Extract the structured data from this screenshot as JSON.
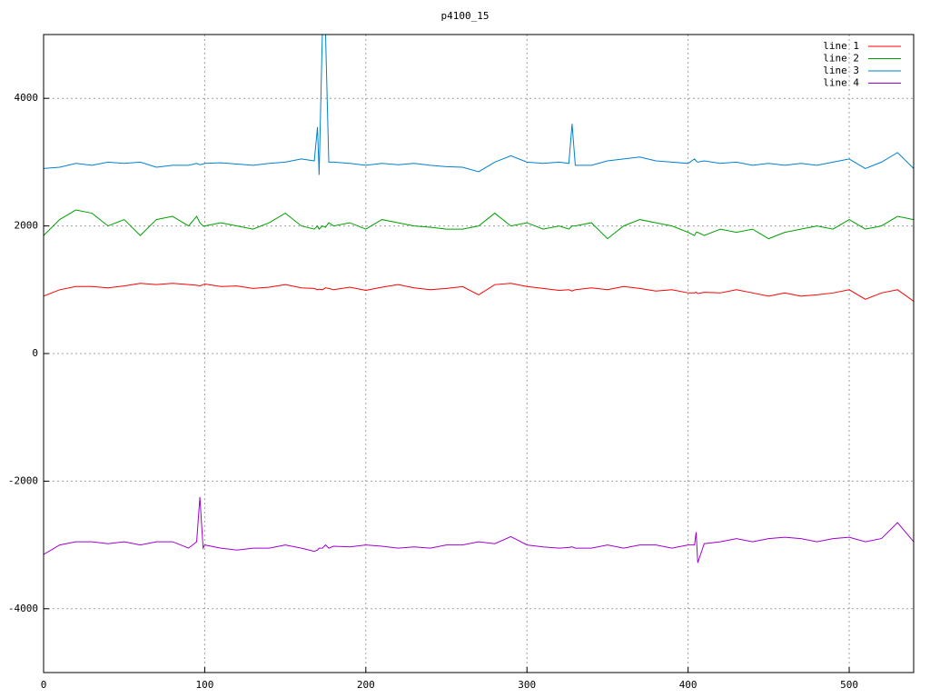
{
  "chart_data": {
    "type": "line",
    "title": "p4100_15",
    "x": [
      0,
      10,
      20,
      30,
      40,
      50,
      60,
      70,
      80,
      90,
      95,
      97,
      99,
      100,
      110,
      120,
      130,
      140,
      150,
      160,
      168,
      170,
      171,
      173,
      175,
      177,
      180,
      190,
      200,
      210,
      220,
      230,
      240,
      250,
      260,
      270,
      280,
      290,
      300,
      310,
      320,
      326,
      328,
      330,
      340,
      350,
      360,
      370,
      380,
      390,
      400,
      404,
      405,
      406,
      410,
      420,
      430,
      440,
      450,
      460,
      470,
      480,
      490,
      500,
      510,
      520,
      530,
      540
    ],
    "series": [
      {
        "name": "line 1",
        "color": "#ff0000",
        "values": [
          900,
          1000,
          1050,
          1050,
          1030,
          1060,
          1100,
          1080,
          1100,
          1080,
          1070,
          1060,
          1080,
          1090,
          1050,
          1060,
          1020,
          1040,
          1080,
          1030,
          1020,
          1000,
          1010,
          1000,
          1030,
          1020,
          1000,
          1040,
          990,
          1040,
          1080,
          1030,
          1000,
          1020,
          1050,
          920,
          1080,
          1100,
          1050,
          1020,
          990,
          1000,
          980,
          1000,
          1030,
          1000,
          1050,
          1020,
          980,
          1000,
          950,
          950,
          960,
          940,
          960,
          950,
          1000,
          950,
          900,
          950,
          900,
          920,
          950,
          1000,
          850,
          950,
          1000,
          820
        ]
      },
      {
        "name": "line 2",
        "color": "#00a000",
        "values": [
          1850,
          2100,
          2250,
          2200,
          2000,
          2100,
          1850,
          2100,
          2150,
          2000,
          2150,
          2050,
          2000,
          2000,
          2050,
          2000,
          1950,
          2050,
          2200,
          2000,
          1950,
          2000,
          1950,
          2000,
          1980,
          2050,
          2000,
          2050,
          1950,
          2100,
          2050,
          2000,
          1980,
          1950,
          1950,
          2000,
          2200,
          2000,
          2050,
          1950,
          2000,
          1950,
          2000,
          2000,
          2050,
          1800,
          2000,
          2100,
          2050,
          2000,
          1900,
          1850,
          1900,
          1900,
          1850,
          1950,
          1900,
          1950,
          1800,
          1900,
          1950,
          2000,
          1950,
          2100,
          1950,
          2000,
          2150,
          2100
        ]
      },
      {
        "name": "line 3",
        "color": "#0080d0",
        "values": [
          2900,
          2920,
          2980,
          2950,
          3000,
          2980,
          3000,
          2920,
          2950,
          2950,
          2980,
          2960,
          2970,
          2980,
          2990,
          2970,
          2950,
          2980,
          3000,
          3050,
          3020,
          3550,
          2800,
          5000,
          5000,
          3000,
          3000,
          2980,
          2950,
          2980,
          2960,
          2980,
          2950,
          2930,
          2920,
          2850,
          3000,
          3100,
          3000,
          2980,
          3000,
          2980,
          3600,
          2950,
          2950,
          3020,
          3050,
          3080,
          3020,
          3000,
          2980,
          3050,
          3020,
          3000,
          3020,
          2980,
          3000,
          2950,
          2980,
          2950,
          2980,
          2950,
          3000,
          3050,
          2900,
          3000,
          3150,
          2900
        ]
      },
      {
        "name": "line 4",
        "color": "#a000d0",
        "values": [
          -3150,
          -3000,
          -2950,
          -2950,
          -2980,
          -2950,
          -3000,
          -2950,
          -2950,
          -3050,
          -2950,
          -2250,
          -3050,
          -3000,
          -3050,
          -3080,
          -3050,
          -3050,
          -3000,
          -3050,
          -3100,
          -3080,
          -3050,
          -3050,
          -3000,
          -3050,
          -3020,
          -3030,
          -3000,
          -3020,
          -3050,
          -3030,
          -3050,
          -3000,
          -3000,
          -2950,
          -2980,
          -2870,
          -3000,
          -3030,
          -3050,
          -3040,
          -3030,
          -3050,
          -3050,
          -3000,
          -3050,
          -3000,
          -3000,
          -3050,
          -3000,
          -3000,
          -2800,
          -3280,
          -2980,
          -2950,
          -2900,
          -2950,
          -2900,
          -2880,
          -2900,
          -2950,
          -2900,
          -2880,
          -2950,
          -2900,
          -2650,
          -2950
        ]
      }
    ],
    "xlim": [
      0,
      540
    ],
    "xticks": [
      0,
      100,
      200,
      300,
      400,
      500
    ],
    "ylim": [
      -5000,
      5000
    ],
    "yticks": [
      -4000,
      -2000,
      0,
      2000,
      4000
    ],
    "grid": true,
    "legend": "top-right"
  }
}
